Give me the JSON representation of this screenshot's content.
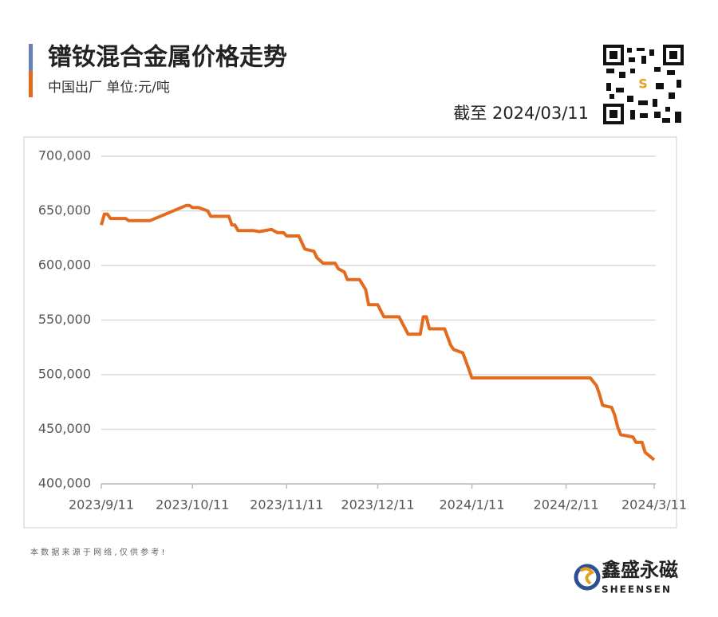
{
  "chart_data": {
    "type": "line",
    "title": "镨钕混合金属价格走势",
    "subtitle": "中国出厂  单位:元/吨",
    "date_note": "截至 2024/03/11",
    "source_note": "本 数 据 来 源 于 网 络 , 仅 供 参 考 !",
    "brand": "鑫盛永磁",
    "brand_en": "SHEENSEN",
    "x": [
      "2023/9/11",
      "2023/9/12",
      "2023/9/13",
      "2023/9/14",
      "2023/9/19",
      "2023/9/20",
      "2023/9/27",
      "2023/10/9",
      "2023/10/10",
      "2023/10/11",
      "2023/10/13",
      "2023/10/16",
      "2023/10/17",
      "2023/10/23",
      "2023/10/24",
      "2023/10/25",
      "2023/10/26",
      "2023/10/31",
      "2023/11/2",
      "2023/11/6",
      "2023/11/8",
      "2023/11/10",
      "2023/11/11",
      "2023/11/15",
      "2023/11/17",
      "2023/11/20",
      "2023/11/21",
      "2023/11/23",
      "2023/11/27",
      "2023/11/28",
      "2023/11/30",
      "2023/12/1",
      "2023/12/5",
      "2023/12/7",
      "2023/12/8",
      "2023/12/11",
      "2023/12/13",
      "2023/12/18",
      "2023/12/21",
      "2023/12/25",
      "2023/12/26",
      "2023/12/27",
      "2023/12/28",
      "2024/1/2",
      "2024/1/4",
      "2024/1/5",
      "2024/1/8",
      "2024/1/10",
      "2024/1/11",
      "2024/2/19",
      "2024/2/21",
      "2024/2/22",
      "2024/2/23",
      "2024/2/26",
      "2024/2/27",
      "2024/2/28",
      "2024/2/29",
      "2024/3/4",
      "2024/3/5",
      "2024/3/7",
      "2024/3/8",
      "2024/3/11"
    ],
    "series": [
      {
        "name": "镨钕混合金属",
        "color": "#e36b1e",
        "values": [
          637000,
          647000,
          647000,
          643000,
          643000,
          641000,
          641000,
          655000,
          655000,
          653000,
          653000,
          650000,
          645000,
          645000,
          637000,
          637000,
          632000,
          632000,
          631000,
          633000,
          630000,
          630000,
          627000,
          627000,
          615000,
          613000,
          607000,
          602000,
          602000,
          597000,
          594000,
          587000,
          587000,
          578000,
          564000,
          564000,
          553000,
          553000,
          537000,
          537000,
          553000,
          553000,
          542000,
          542000,
          527000,
          523000,
          520000,
          505000,
          497000,
          497000,
          490000,
          482000,
          472000,
          470000,
          463000,
          452000,
          445000,
          443000,
          438000,
          438000,
          429000,
          422000
        ]
      }
    ],
    "xlim": [
      "2023/9/11",
      "2024/3/11"
    ],
    "xticks": [
      "2023/9/11",
      "2023/10/11",
      "2023/11/11",
      "2023/12/11",
      "2024/1/11",
      "2024/2/11",
      "2024/3/11"
    ],
    "ylim": [
      400000,
      700000
    ],
    "yticks": [
      {
        "value": 400000,
        "label": "400,000"
      },
      {
        "value": 450000,
        "label": "450,000"
      },
      {
        "value": 500000,
        "label": "500,000"
      },
      {
        "value": 550000,
        "label": "550,000"
      },
      {
        "value": 600000,
        "label": "600,000"
      },
      {
        "value": 650000,
        "label": "650,000"
      },
      {
        "value": 700000,
        "label": "700,000"
      }
    ],
    "grid": true
  }
}
